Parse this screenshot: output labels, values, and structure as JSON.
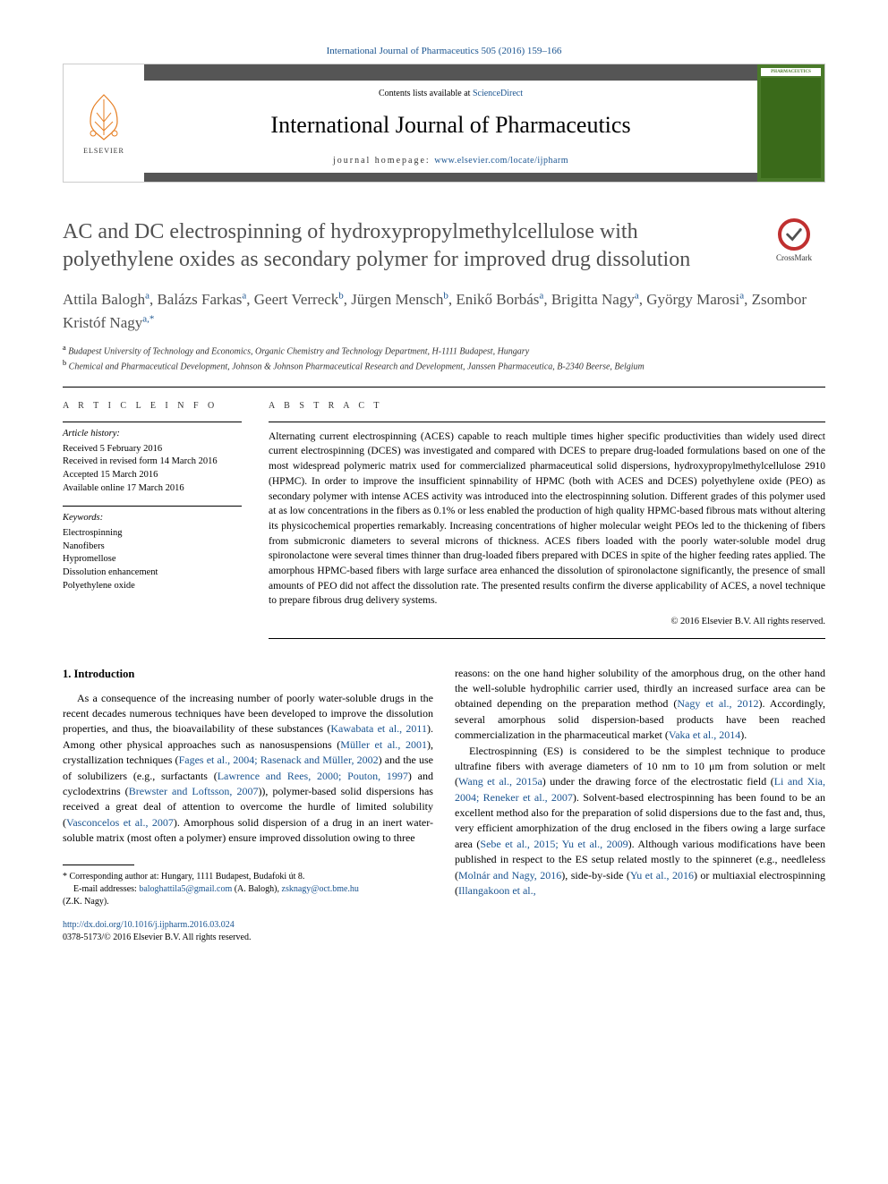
{
  "top_citation": "International Journal of Pharmaceutics 505 (2016) 159–166",
  "header": {
    "contents_prefix": "Contents lists available at ",
    "contents_link": "ScienceDirect",
    "journal_name": "International Journal of Pharmaceutics",
    "homepage_prefix": "journal homepage: ",
    "homepage_link": "www.elsevier.com/locate/ijpharm",
    "publisher": "ELSEVIER",
    "cover_title": "PHARMACEUTICS"
  },
  "crossmark_label": "CrossMark",
  "title": "AC and DC electrospinning of hydroxypropylmethylcellulose with polyethylene oxides as secondary polymer for improved drug dissolution",
  "authors_html": [
    {
      "name": "Attila Balogh",
      "sup": "a"
    },
    {
      "name": "Balázs Farkas",
      "sup": "a"
    },
    {
      "name": "Geert Verreck",
      "sup": "b"
    },
    {
      "name": "Jürgen Mensch",
      "sup": "b"
    },
    {
      "name": "Enikő Borbás",
      "sup": "a"
    },
    {
      "name": "Brigitta Nagy",
      "sup": "a"
    },
    {
      "name": "György Marosi",
      "sup": "a"
    },
    {
      "name": "Zsombor Kristóf Nagy",
      "sup": "a,*"
    }
  ],
  "affiliations": [
    {
      "sup": "a",
      "text": "Budapest University of Technology and Economics, Organic Chemistry and Technology Department, H-1111 Budapest, Hungary"
    },
    {
      "sup": "b",
      "text": "Chemical and Pharmaceutical Development, Johnson & Johnson Pharmaceutical Research and Development, Janssen Pharmaceutica, B-2340 Beerse, Belgium"
    }
  ],
  "article_info": {
    "heading": "A R T I C L E  I N F O",
    "history_label": "Article history:",
    "history": [
      "Received 5 February 2016",
      "Received in revised form 14 March 2016",
      "Accepted 15 March 2016",
      "Available online 17 March 2016"
    ],
    "keywords_label": "Keywords:",
    "keywords": [
      "Electrospinning",
      "Nanofibers",
      "Hypromellose",
      "Dissolution enhancement",
      "Polyethylene oxide"
    ]
  },
  "abstract": {
    "heading": "A B S T R A C T",
    "text": "Alternating current electrospinning (ACES) capable to reach multiple times higher specific productivities than widely used direct current electrospinning (DCES) was investigated and compared with DCES to prepare drug-loaded formulations based on one of the most widespread polymeric matrix used for commercialized pharmaceutical solid dispersions, hydroxypropylmethylcellulose 2910 (HPMC). In order to improve the insufficient spinnability of HPMC (both with ACES and DCES) polyethylene oxide (PEO) as secondary polymer with intense ACES activity was introduced into the electrospinning solution. Different grades of this polymer used at as low concentrations in the fibers as 0.1% or less enabled the production of high quality HPMC-based fibrous mats without altering its physicochemical properties remarkably. Increasing concentrations of higher molecular weight PEOs led to the thickening of fibers from submicronic diameters to several microns of thickness. ACES fibers loaded with the poorly water-soluble model drug spironolactone were several times thinner than drug-loaded fibers prepared with DCES in spite of the higher feeding rates applied. The amorphous HPMC-based fibers with large surface area enhanced the dissolution of spironolactone significantly, the presence of small amounts of PEO did not affect the dissolution rate. The presented results confirm the diverse applicability of ACES, a novel technique to prepare fibrous drug delivery systems.",
    "copyright": "© 2016 Elsevier B.V. All rights reserved."
  },
  "section1": {
    "heading": "1. Introduction",
    "para1_a": "As a consequence of the increasing number of poorly water-soluble drugs in the recent decades numerous techniques have been developed to improve the dissolution properties, and thus, the bioavailability of these substances (",
    "cite1": "Kawabata et al., 2011",
    "para1_b": "). Among other physical approaches such as nanosuspensions (",
    "cite2": "Müller et al., 2001",
    "para1_c": "), crystallization techniques (",
    "cite3": "Fages et al., 2004; Rasenack and Müller, 2002",
    "para1_d": ") and the use of solubilizers (e.g., surfactants (",
    "cite4": "Lawrence and Rees, 2000; Pouton, 1997",
    "para1_e": ") and cyclodextrins (",
    "cite5": "Brewster and Loftsson, 2007",
    "para1_f": ")), polymer-based solid dispersions has received a great deal of attention to overcome the hurdle of limited solubility (",
    "cite6": "Vasconcelos et al., 2007",
    "para1_g": "). Amorphous solid dispersion of a drug in an inert water-soluble matrix (most often a polymer) ensure improved dissolution owing to three",
    "para2_a": "reasons: on the one hand higher solubility of the amorphous drug, on the other hand the well-soluble hydrophilic carrier used, thirdly an increased surface area can be obtained depending on the preparation method (",
    "cite7": "Nagy et al., 2012",
    "para2_b": "). Accordingly, several amorphous solid dispersion-based products have been reached commercialization in the pharmaceutical market (",
    "cite8": "Vaka et al., 2014",
    "para2_c": ").",
    "para3_a": "Electrospinning (ES) is considered to be the simplest technique to produce ultrafine fibers with average diameters of 10 nm to 10 μm from solution or melt (",
    "cite9": "Wang et al., 2015a",
    "para3_b": ") under the drawing force of the electrostatic field (",
    "cite10": "Li and Xia, 2004; Reneker et al., 2007",
    "para3_c": "). Solvent-based electrospinning has been found to be an excellent method also for the preparation of solid dispersions due to the fast and, thus, very efficient amorphization of the drug enclosed in the fibers owing a large surface area (",
    "cite11": "Sebe et al., 2015; Yu et al., 2009",
    "para3_d": "). Although various modifications have been published in respect to the ES setup related mostly to the spinneret (e.g., needleless (",
    "cite12": "Molnár and Nagy, 2016",
    "para3_e": "), side-by-side (",
    "cite13": "Yu et al., 2016",
    "para3_f": ") or multiaxial electrospinning (",
    "cite14": "Illangakoon et al.,"
  },
  "footnote": {
    "corr_label": "* Corresponding author at: Hungary, 1111 Budapest, Budafoki út 8.",
    "email_label": "E-mail addresses: ",
    "email1": "baloghattila5@gmail.com",
    "email1_who": " (A. Balogh), ",
    "email2": "zsknagy@oct.bme.hu",
    "email2_who": "(Z.K. Nagy)."
  },
  "doi": {
    "link": "http://dx.doi.org/10.1016/j.ijpharm.2016.03.024",
    "issn_copyright": "0378-5173/© 2016 Elsevier B.V. All rights reserved."
  },
  "colors": {
    "link": "#1a5490",
    "title": "#505050",
    "cover_green": "#4a7a2a",
    "crossmark_ring": "#c03030"
  }
}
